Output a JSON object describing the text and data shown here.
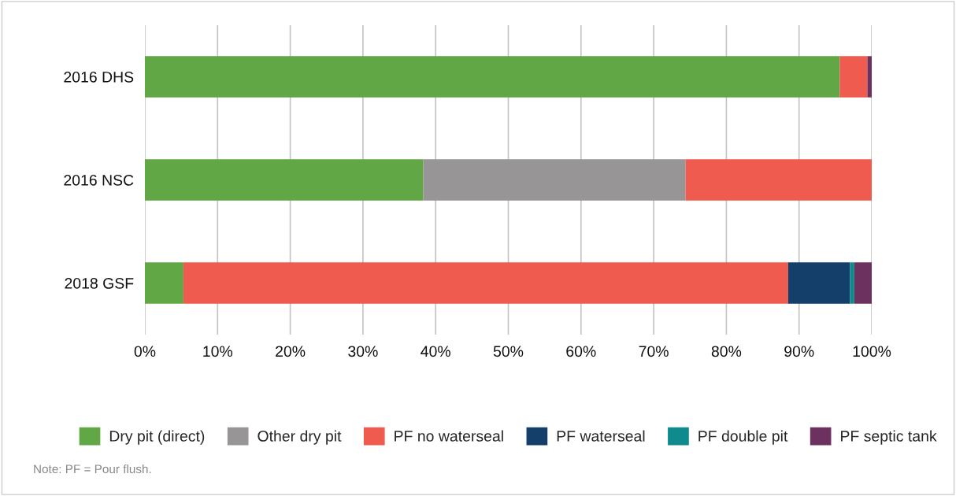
{
  "chart_data": {
    "type": "bar",
    "orientation": "horizontal",
    "stacked": true,
    "categories": [
      "2016 DHS",
      "2016 NSC",
      "2018 GSF"
    ],
    "series": [
      {
        "name": "Dry pit (direct)",
        "color": "#62a745",
        "values": [
          95.6,
          38.3,
          5.3
        ]
      },
      {
        "name": "Other dry pit",
        "color": "#979596",
        "values": [
          0,
          36.1,
          0
        ]
      },
      {
        "name": "PF no waterseal",
        "color": "#f05b4f",
        "values": [
          3.8,
          25.6,
          83.2
        ]
      },
      {
        "name": "PF waterseal",
        "color": "#143f6b",
        "values": [
          0,
          0,
          8.5
        ]
      },
      {
        "name": "PF double pit",
        "color": "#0f8b8d",
        "values": [
          0,
          0,
          0.6
        ]
      },
      {
        "name": "PF septic tank",
        "color": "#6d3160",
        "values": [
          0.6,
          0,
          2.4
        ]
      }
    ],
    "xlim": [
      0,
      100
    ],
    "xticks": [
      {
        "value": 0,
        "label": "0%"
      },
      {
        "value": 10,
        "label": "10%"
      },
      {
        "value": 20,
        "label": "20%"
      },
      {
        "value": 30,
        "label": "30%"
      },
      {
        "value": 40,
        "label": "40%"
      },
      {
        "value": 50,
        "label": "50%"
      },
      {
        "value": 60,
        "label": "60%"
      },
      {
        "value": 70,
        "label": "70%"
      },
      {
        "value": 80,
        "label": "80%"
      },
      {
        "value": 90,
        "label": "90%"
      },
      {
        "value": 100,
        "label": "100%"
      }
    ],
    "grid": "x",
    "legend": "bottom",
    "annotations": [
      "Note: PF = Pour flush."
    ]
  }
}
